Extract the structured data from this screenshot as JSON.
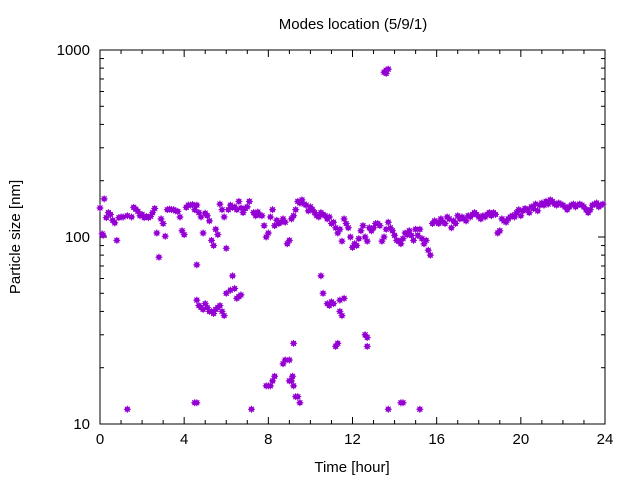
{
  "chart_data": {
    "type": "scatter",
    "title": "Modes location (5/9/1)",
    "xlabel": "Time [hour]",
    "ylabel": "Particle size [nm]",
    "xlim": [
      0,
      24
    ],
    "ylim": [
      10,
      1000
    ],
    "yscale": "log",
    "x_ticks": [
      0,
      4,
      8,
      12,
      16,
      20,
      24
    ],
    "y_ticks": [
      10,
      100,
      1000
    ],
    "x_tick_labels": [
      "0",
      "4",
      "8",
      "12",
      "16",
      "20",
      "24"
    ],
    "y_tick_labels": [
      "10",
      "100",
      "1000"
    ],
    "grid": false,
    "legend": "none",
    "marker_color": "#9400d3",
    "series": [
      {
        "values": [
          [
            0.0,
            143
          ],
          [
            0.1,
            104
          ],
          [
            0.15,
            102
          ],
          [
            0.2,
            160
          ],
          [
            0.3,
            127
          ],
          [
            0.4,
            135
          ],
          [
            0.5,
            132
          ],
          [
            0.6,
            123
          ],
          [
            0.7,
            119
          ],
          [
            0.8,
            96
          ],
          [
            0.9,
            127
          ],
          [
            1.0,
            128
          ],
          [
            1.1,
            128
          ],
          [
            1.3,
            130
          ],
          [
            1.5,
            128
          ],
          [
            1.6,
            144
          ],
          [
            1.7,
            141
          ],
          [
            1.8,
            137
          ],
          [
            1.9,
            130
          ],
          [
            2.0,
            132
          ],
          [
            2.1,
            127
          ],
          [
            2.2,
            129
          ],
          [
            2.3,
            127
          ],
          [
            2.4,
            129
          ],
          [
            2.5,
            135
          ],
          [
            2.6,
            142
          ],
          [
            2.7,
            105
          ],
          [
            2.8,
            78
          ],
          [
            2.9,
            125
          ],
          [
            3.0,
            118
          ],
          [
            3.1,
            101
          ],
          [
            3.2,
            140
          ],
          [
            3.3,
            141
          ],
          [
            3.4,
            140
          ],
          [
            3.5,
            140
          ],
          [
            3.6,
            138
          ],
          [
            3.7,
            137
          ],
          [
            3.8,
            128
          ],
          [
            3.9,
            108
          ],
          [
            4.0,
            103
          ],
          [
            4.1,
            144
          ],
          [
            4.2,
            148
          ],
          [
            4.3,
            148
          ],
          [
            4.4,
            149
          ],
          [
            4.5,
            140
          ],
          [
            4.6,
            148
          ],
          [
            4.7,
            135
          ],
          [
            4.8,
            128
          ],
          [
            4.9,
            105
          ],
          [
            5.0,
            134
          ],
          [
            5.1,
            130
          ],
          [
            5.2,
            122
          ],
          [
            5.3,
            96
          ],
          [
            5.4,
            90
          ],
          [
            5.5,
            110
          ],
          [
            5.6,
            103
          ],
          [
            5.7,
            150
          ],
          [
            5.8,
            140
          ],
          [
            5.9,
            128
          ],
          [
            6.0,
            87
          ],
          [
            6.1,
            140
          ],
          [
            6.2,
            148
          ],
          [
            6.3,
            144
          ],
          [
            6.4,
            145
          ],
          [
            6.5,
            140
          ],
          [
            6.6,
            155
          ],
          [
            6.7,
            143
          ],
          [
            6.8,
            135
          ],
          [
            6.9,
            142
          ],
          [
            7.0,
            145
          ],
          [
            7.1,
            155
          ],
          [
            7.3,
            135
          ],
          [
            7.4,
            130
          ],
          [
            7.5,
            136
          ],
          [
            7.6,
            131
          ],
          [
            7.7,
            130
          ],
          [
            7.8,
            115
          ],
          [
            7.9,
            100
          ],
          [
            8.0,
            105
          ],
          [
            8.1,
            128
          ],
          [
            8.2,
            140
          ],
          [
            8.3,
            115
          ],
          [
            8.4,
            123
          ],
          [
            8.5,
            118
          ],
          [
            8.6,
            120
          ],
          [
            8.7,
            125
          ],
          [
            8.8,
            120
          ],
          [
            8.9,
            92
          ],
          [
            9.0,
            96
          ],
          [
            9.1,
            125
          ],
          [
            9.2,
            130
          ],
          [
            9.3,
            140
          ],
          [
            9.4,
            155
          ],
          [
            9.5,
            152
          ],
          [
            9.6,
            158
          ],
          [
            9.7,
            150
          ],
          [
            9.8,
            148
          ],
          [
            9.9,
            138
          ],
          [
            10.0,
            145
          ],
          [
            10.1,
            140
          ],
          [
            10.2,
            135
          ],
          [
            10.3,
            130
          ],
          [
            10.4,
            128
          ],
          [
            10.5,
            135
          ],
          [
            10.6,
            132
          ],
          [
            10.7,
            130
          ],
          [
            10.8,
            125
          ],
          [
            10.9,
            128
          ],
          [
            11.0,
            118
          ],
          [
            11.1,
            120
          ],
          [
            11.2,
            112
          ],
          [
            11.3,
            105
          ],
          [
            11.4,
            110
          ],
          [
            11.5,
            95
          ],
          [
            11.6,
            125
          ],
          [
            11.7,
            118
          ],
          [
            11.8,
            112
          ],
          [
            11.9,
            100
          ],
          [
            12.0,
            88
          ],
          [
            12.1,
            92
          ],
          [
            12.2,
            90
          ],
          [
            12.3,
            98
          ],
          [
            12.4,
            108
          ],
          [
            12.5,
            115
          ],
          [
            12.6,
            100
          ],
          [
            12.7,
            95
          ],
          [
            12.8,
            112
          ],
          [
            12.9,
            108
          ],
          [
            13.0,
            112
          ],
          [
            13.1,
            118
          ],
          [
            13.2,
            118
          ],
          [
            13.3,
            115
          ],
          [
            13.4,
            95
          ],
          [
            13.5,
            100
          ],
          [
            13.6,
            110
          ],
          [
            13.7,
            120
          ],
          [
            13.8,
            112
          ],
          [
            13.9,
            108
          ],
          [
            14.0,
            102
          ],
          [
            14.1,
            96
          ],
          [
            14.2,
            95
          ],
          [
            14.3,
            92
          ],
          [
            14.4,
            98
          ],
          [
            14.5,
            105
          ],
          [
            14.6,
            103
          ],
          [
            14.7,
            108
          ],
          [
            14.8,
            102
          ],
          [
            14.9,
            96
          ],
          [
            15.0,
            110
          ],
          [
            15.1,
            102
          ],
          [
            15.2,
            110
          ],
          [
            15.3,
            98
          ],
          [
            15.4,
            92
          ],
          [
            15.5,
            96
          ],
          [
            15.6,
            85
          ],
          [
            15.7,
            80
          ],
          [
            15.8,
            118
          ],
          [
            15.9,
            122
          ],
          [
            16.0,
            120
          ],
          [
            16.1,
            118
          ],
          [
            16.2,
            125
          ],
          [
            16.3,
            120
          ],
          [
            16.4,
            118
          ],
          [
            16.5,
            128
          ],
          [
            16.6,
            125
          ],
          [
            16.7,
            112
          ],
          [
            16.8,
            122
          ],
          [
            16.9,
            118
          ],
          [
            17.0,
            130
          ],
          [
            17.1,
            125
          ],
          [
            17.2,
            128
          ],
          [
            17.3,
            125
          ],
          [
            17.4,
            122
          ],
          [
            17.5,
            130
          ],
          [
            17.6,
            128
          ],
          [
            17.7,
            132
          ],
          [
            17.8,
            135
          ],
          [
            17.9,
            132
          ],
          [
            18.0,
            128
          ],
          [
            18.1,
            125
          ],
          [
            18.2,
            130
          ],
          [
            18.3,
            128
          ],
          [
            18.4,
            132
          ],
          [
            18.5,
            135
          ],
          [
            18.6,
            130
          ],
          [
            18.7,
            135
          ],
          [
            18.8,
            132
          ],
          [
            18.9,
            105
          ],
          [
            19.0,
            108
          ],
          [
            19.1,
            125
          ],
          [
            19.2,
            122
          ],
          [
            19.3,
            120
          ],
          [
            19.4,
            125
          ],
          [
            19.5,
            128
          ],
          [
            19.6,
            130
          ],
          [
            19.7,
            128
          ],
          [
            19.8,
            135
          ],
          [
            19.9,
            140
          ],
          [
            20.0,
            130
          ],
          [
            20.1,
            138
          ],
          [
            20.2,
            142
          ],
          [
            20.3,
            140
          ],
          [
            20.4,
            135
          ],
          [
            20.5,
            145
          ],
          [
            20.6,
            142
          ],
          [
            20.7,
            150
          ],
          [
            20.8,
            138
          ],
          [
            20.9,
            148
          ],
          [
            21.0,
            152
          ],
          [
            21.1,
            148
          ],
          [
            21.2,
            155
          ],
          [
            21.3,
            150
          ],
          [
            21.4,
            158
          ],
          [
            21.5,
            155
          ],
          [
            21.6,
            150
          ],
          [
            21.7,
            148
          ],
          [
            21.8,
            152
          ],
          [
            21.9,
            150
          ],
          [
            22.0,
            148
          ],
          [
            22.1,
            145
          ],
          [
            22.2,
            140
          ],
          [
            22.3,
            145
          ],
          [
            22.4,
            148
          ],
          [
            22.5,
            150
          ],
          [
            22.6,
            145
          ],
          [
            22.7,
            148
          ],
          [
            22.8,
            150
          ],
          [
            22.9,
            148
          ],
          [
            23.0,
            145
          ],
          [
            23.1,
            140
          ],
          [
            23.2,
            135
          ],
          [
            23.3,
            140
          ],
          [
            23.4,
            148
          ],
          [
            23.5,
            150
          ],
          [
            23.6,
            152
          ],
          [
            23.7,
            145
          ],
          [
            23.8,
            148
          ],
          [
            23.9,
            150
          ],
          [
            4.6,
            71
          ],
          [
            4.6,
            46
          ],
          [
            4.7,
            43
          ],
          [
            4.8,
            42
          ],
          [
            4.9,
            41
          ],
          [
            5.0,
            44
          ],
          [
            5.1,
            42
          ],
          [
            5.2,
            40
          ],
          [
            5.3,
            40
          ],
          [
            5.4,
            39
          ],
          [
            5.5,
            41
          ],
          [
            5.6,
            42
          ],
          [
            5.7,
            43
          ],
          [
            5.8,
            40
          ],
          [
            5.9,
            38
          ],
          [
            6.0,
            50
          ],
          [
            6.2,
            52
          ],
          [
            6.4,
            53
          ],
          [
            6.3,
            62
          ],
          [
            6.5,
            47
          ],
          [
            6.6,
            48
          ],
          [
            6.7,
            49
          ],
          [
            7.9,
            16
          ],
          [
            8.0,
            16
          ],
          [
            8.1,
            16
          ],
          [
            8.2,
            17
          ],
          [
            8.3,
            18
          ],
          [
            8.7,
            21
          ],
          [
            8.8,
            22
          ],
          [
            9.0,
            22
          ],
          [
            9.2,
            27
          ],
          [
            9.0,
            17
          ],
          [
            9.1,
            17
          ],
          [
            9.15,
            18
          ],
          [
            9.2,
            16
          ],
          [
            9.3,
            14
          ],
          [
            9.4,
            14
          ],
          [
            9.5,
            13
          ],
          [
            10.5,
            62
          ],
          [
            10.6,
            50
          ],
          [
            10.8,
            44
          ],
          [
            10.9,
            43
          ],
          [
            11.0,
            45
          ],
          [
            11.1,
            44
          ],
          [
            11.4,
            46
          ],
          [
            11.4,
            40
          ],
          [
            11.6,
            47
          ],
          [
            11.5,
            38
          ],
          [
            11.2,
            26
          ],
          [
            11.3,
            27
          ],
          [
            12.6,
            30
          ],
          [
            12.7,
            29
          ],
          [
            12.7,
            26
          ],
          [
            13.5,
            760
          ],
          [
            13.6,
            780
          ],
          [
            13.7,
            790
          ],
          [
            13.6,
            750
          ],
          [
            1.3,
            12
          ],
          [
            4.5,
            13
          ],
          [
            4.6,
            13
          ],
          [
            7.2,
            12
          ],
          [
            13.7,
            12
          ],
          [
            14.3,
            13
          ],
          [
            14.4,
            13
          ],
          [
            15.2,
            12
          ]
        ]
      }
    ]
  }
}
